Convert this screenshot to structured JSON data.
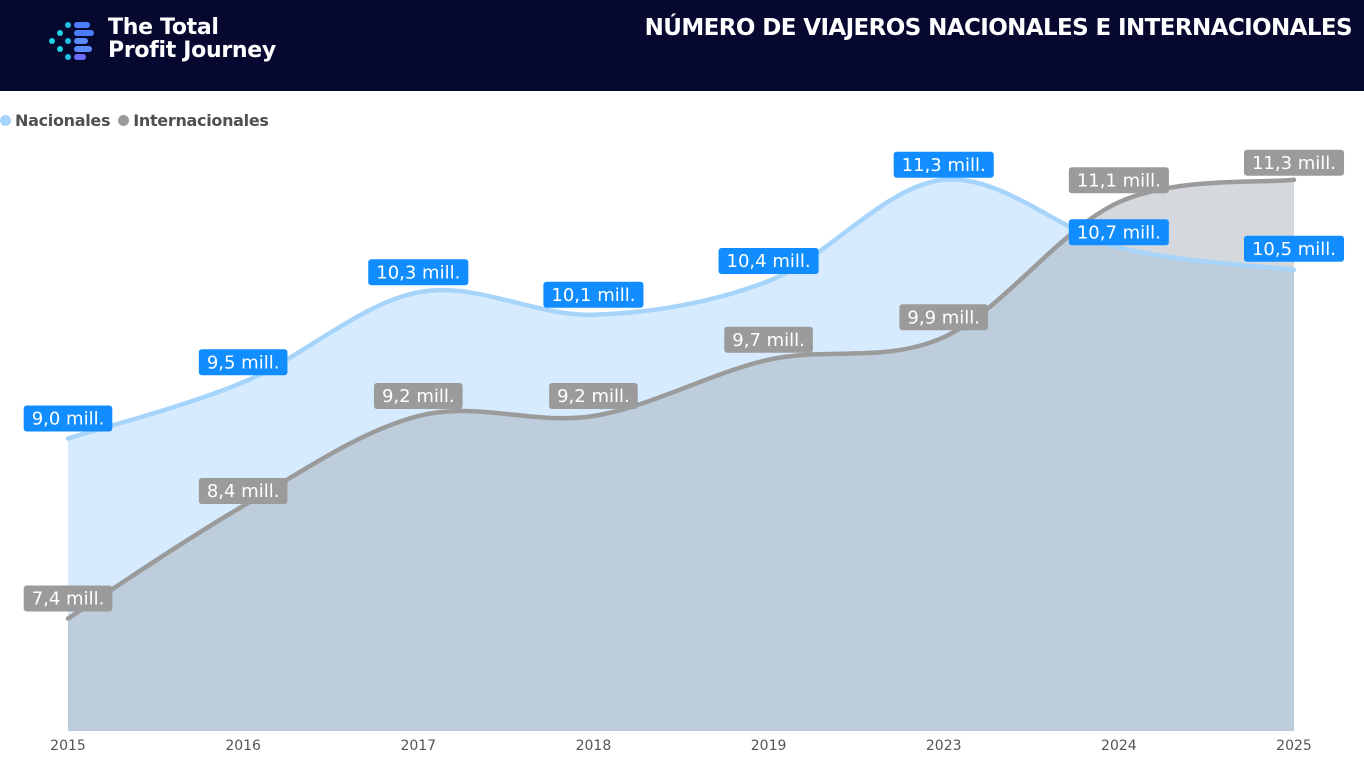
{
  "header": {
    "brand_line1": "The Total",
    "brand_line2": "Profit Journey",
    "title": "NÚMERO DE VIAJEROS NACIONALES E INTERNACIONALES"
  },
  "colors": {
    "header_bg": "#070830",
    "nacionales": "#a6d4fa",
    "nacionales_fill": "#d6ebfd",
    "nacionales_label_bg": "#118dff",
    "internacionales": "#9b9b9b",
    "internacionales_fill": "#bfccd8",
    "internacionales_label_bg": "#9b9b9b"
  },
  "chart_data": {
    "type": "area",
    "title": "NÚMERO DE VIAJEROS NACIONALES E INTERNACIONALES",
    "xlabel": "",
    "ylabel": "",
    "categories": [
      "2015",
      "2016",
      "2017",
      "2018",
      "2019",
      "2023",
      "2024",
      "2025"
    ],
    "ylim": [
      6.4,
      11.6
    ],
    "legend": "top-left",
    "grid": false,
    "series": [
      {
        "name": "Nacionales",
        "values": [
          9.0,
          9.5,
          10.3,
          10.1,
          10.4,
          11.3,
          10.7,
          10.5
        ],
        "labels": [
          "9,0 mill.",
          "9,5 mill.",
          "10,3 mill.",
          "10,1 mill.",
          "10,4 mill.",
          "11,3 mill.",
          "10,7 mill.",
          "10,5 mill."
        ]
      },
      {
        "name": "Internacionales",
        "values": [
          7.4,
          8.4,
          9.2,
          9.2,
          9.7,
          9.9,
          11.1,
          11.3
        ],
        "labels": [
          "7,4 mill.",
          "8,4 mill.",
          "9,2 mill.",
          "9,2 mill.",
          "9,7 mill.",
          "9,9 mill.",
          "11,1 mill.",
          "11,3 mill."
        ]
      }
    ]
  }
}
